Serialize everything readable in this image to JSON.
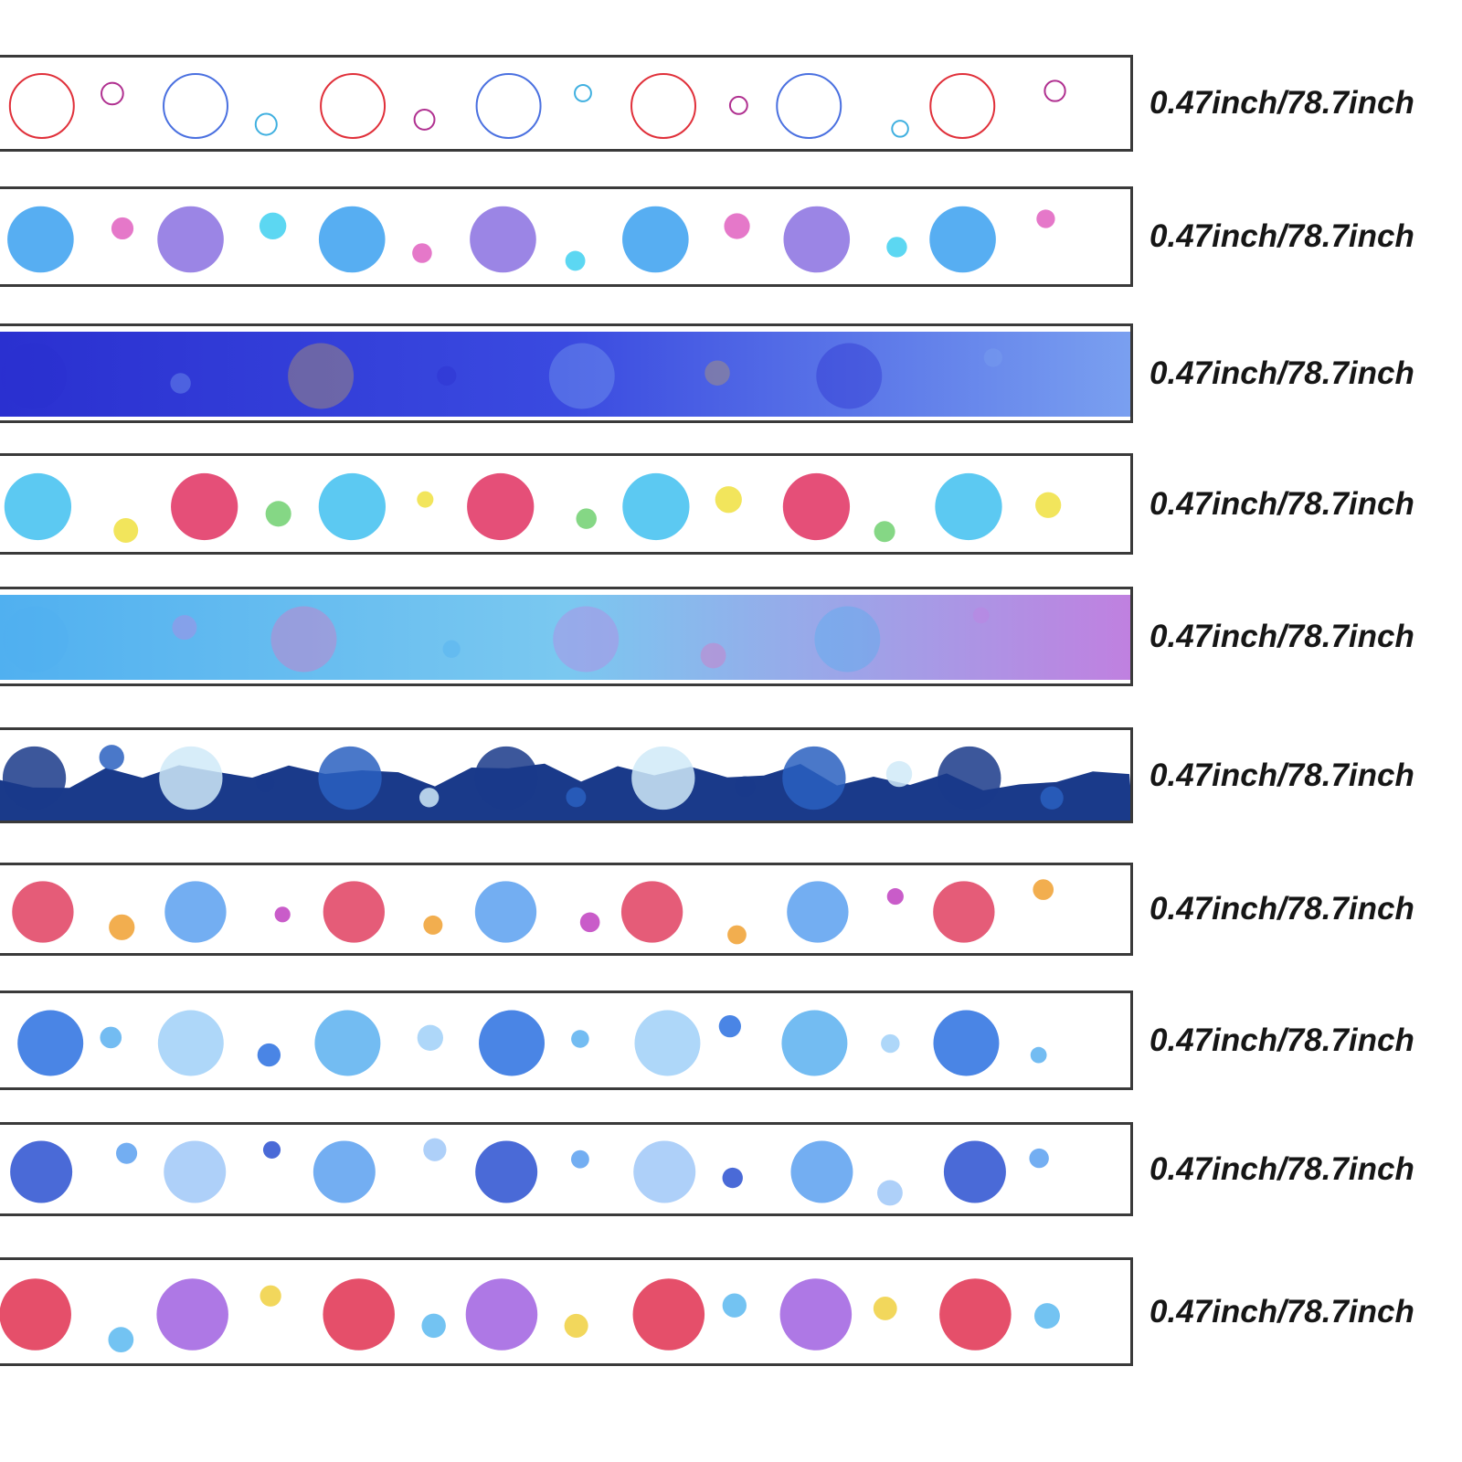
{
  "strips": [
    {
      "label": "0.47inch/78.7inch",
      "theme": "zodiac-line-art",
      "background": "#ffffff",
      "colors": [
        "#e0303a",
        "#b03090",
        "#4a70e0",
        "#40b0e0"
      ]
    },
    {
      "label": "0.47inch/78.7inch",
      "theme": "planets-and-stars",
      "background": "#ffffff",
      "colors": [
        "#3aa0f0",
        "#e060c0",
        "#8a70e0",
        "#40d0f0"
      ]
    },
    {
      "label": "0.47inch/78.7inch",
      "theme": "blue-galaxy-constellations",
      "background": "#3a4ae0",
      "colors": [
        "#2a30d0",
        "#7aa0f0",
        "#c0a060"
      ]
    },
    {
      "label": "0.47inch/78.7inch",
      "theme": "colorful-planets-rainbows",
      "background": "#ffffff",
      "colors": [
        "#40c0f0",
        "#f0e040",
        "#e03060",
        "#70d070"
      ]
    },
    {
      "label": "0.47inch/78.7inch",
      "theme": "pastel-blue-bubbles",
      "background": "#7ac8f0",
      "colors": [
        "#50b0f0",
        "#c080e0",
        "#e070c0"
      ]
    },
    {
      "label": "0.47inch/78.7inch",
      "theme": "ocean-waves",
      "background": "#ffffff",
      "colors": [
        "#1a3a8a",
        "#2a60c0",
        "#d0eaf8"
      ]
    },
    {
      "label": "0.47inch/78.7inch",
      "theme": "coral-and-shells",
      "background": "#ffffff",
      "colors": [
        "#e04060",
        "#f0a030",
        "#5aa0f0",
        "#c040c0"
      ]
    },
    {
      "label": "0.47inch/78.7inch",
      "theme": "blue-sea-creatures",
      "background": "#ffffff",
      "colors": [
        "#2a70e0",
        "#5ab0f0",
        "#a0d0f8"
      ]
    },
    {
      "label": "0.47inch/78.7inch",
      "theme": "jellyfish-and-crystals",
      "background": "#ffffff",
      "colors": [
        "#2a50d0",
        "#5aa0f0",
        "#a0c8f8"
      ]
    },
    {
      "label": "0.47inch/78.7inch",
      "theme": "reef-and-starfish",
      "background": "#ffffff",
      "colors": [
        "#e03050",
        "#5ab8f0",
        "#a060e0",
        "#f0d040"
      ]
    }
  ]
}
